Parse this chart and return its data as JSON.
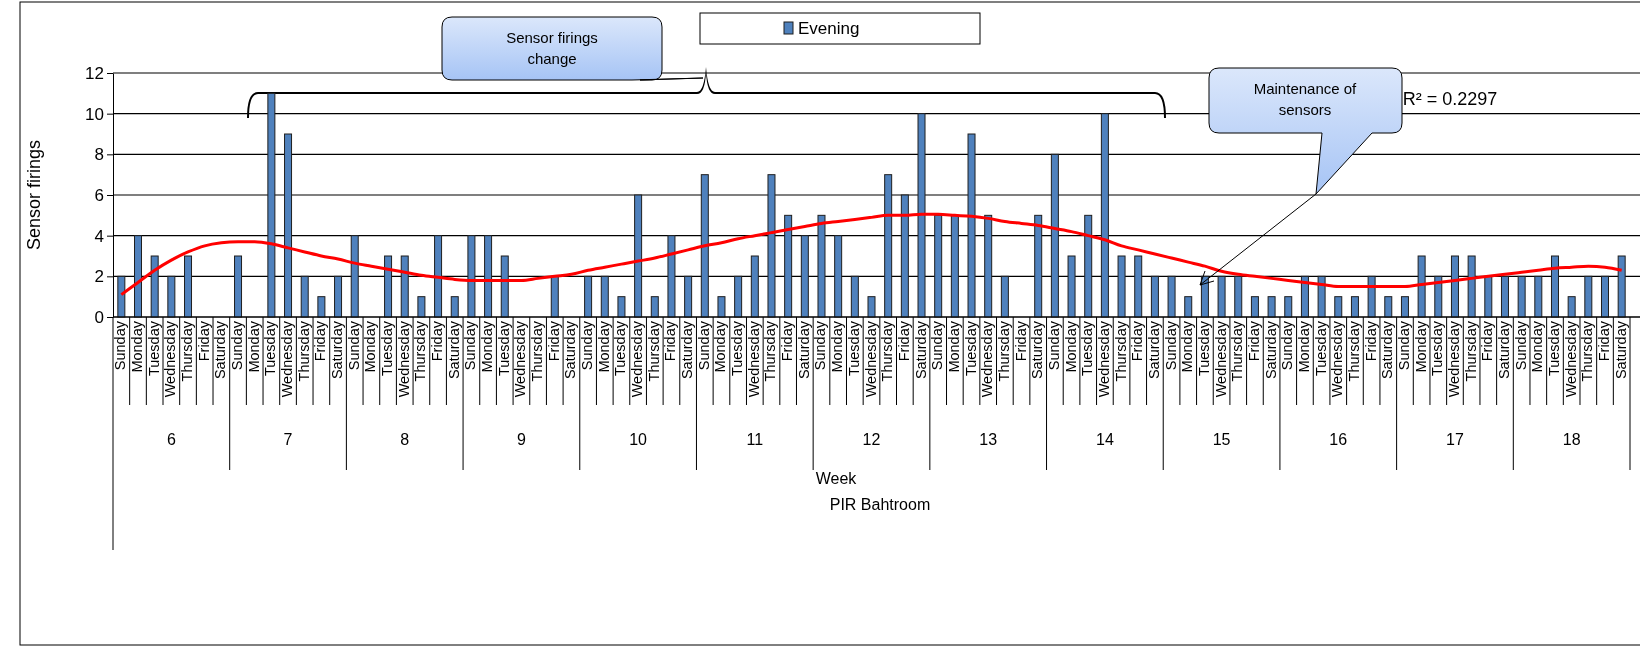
{
  "chart_data": {
    "type": "bar",
    "title": "PIR Bahtroom",
    "xlabel": "Week",
    "ylabel": "Sensor firings",
    "categories": [
      "Sunday",
      "Monday",
      "Tuesday",
      "Wednesday",
      "Thursday",
      "Friday",
      "Saturday",
      "Sunday",
      "Monday",
      "Tuesday",
      "Wednesday",
      "Thursday",
      "Friday",
      "Saturday",
      "Sunday",
      "Monday",
      "Tuesday",
      "Wednesday",
      "Thursday",
      "Friday",
      "Saturday",
      "Sunday",
      "Monday",
      "Tuesday",
      "Wednesday",
      "Thursday",
      "Friday",
      "Saturday",
      "Sunday",
      "Monday",
      "Tuesday",
      "Wednesday",
      "Thursday",
      "Friday",
      "Saturday",
      "Sunday",
      "Monday",
      "Tuesday",
      "Wednesday",
      "Thursday",
      "Friday",
      "Saturday",
      "Sunday",
      "Monday",
      "Tuesday",
      "Wednesday",
      "Thursday",
      "Friday",
      "Saturday",
      "Sunday",
      "Monday",
      "Tuesday",
      "Wednesday",
      "Thursday",
      "Friday",
      "Saturday",
      "Sunday",
      "Monday",
      "Tuesday",
      "Wednesday",
      "Thursday",
      "Friday",
      "Saturday",
      "Sunday",
      "Monday",
      "Tuesday",
      "Wednesday",
      "Thursday",
      "Friday",
      "Saturday",
      "Sunday",
      "Monday",
      "Tuesday",
      "Wednesday",
      "Thursday",
      "Friday",
      "Saturday",
      "Sunday",
      "Monday",
      "Tuesday",
      "Wednesday",
      "Thursday",
      "Friday",
      "Saturday",
      "Sunday",
      "Monday",
      "Tuesday",
      "Wednesday",
      "Thursday",
      "Friday",
      "Saturday"
    ],
    "series": [
      {
        "name": "Evening",
        "color": "#4f81bd",
        "values": [
          2,
          4,
          3,
          2,
          3,
          0,
          0,
          3,
          0,
          11,
          9,
          2,
          1,
          2,
          4,
          0,
          3,
          3,
          1,
          4,
          1,
          4,
          4,
          3,
          0,
          0,
          2,
          0,
          2,
          2,
          1,
          6,
          1,
          4,
          2,
          7,
          1,
          2,
          3,
          7,
          5,
          4,
          5,
          4,
          2,
          1,
          7,
          6,
          10,
          5,
          5,
          9,
          5,
          2,
          0,
          5,
          8,
          3,
          5,
          10,
          3,
          3,
          2,
          2,
          1,
          2,
          2,
          2,
          1,
          1,
          1,
          2,
          2,
          1,
          1,
          2,
          1,
          1,
          3,
          2,
          3,
          3,
          2,
          2,
          2,
          2,
          3,
          1,
          2,
          2,
          3
        ]
      },
      {
        "type": "line",
        "color": "#ff0000",
        "values": [
          1.1,
          1.7,
          2.3,
          2.8,
          3.2,
          3.5,
          3.65,
          3.7,
          3.7,
          3.6,
          3.4,
          3.2,
          3.0,
          2.85,
          2.65,
          2.5,
          2.35,
          2.2,
          2.05,
          1.95,
          1.85,
          1.8,
          1.8,
          1.8,
          1.8,
          1.9,
          2.0,
          2.1,
          2.3,
          2.45,
          2.6,
          2.75,
          2.9,
          3.1,
          3.3,
          3.5,
          3.65,
          3.85,
          4.0,
          4.15,
          4.3,
          4.45,
          4.6,
          4.7,
          4.8,
          4.9,
          5.0,
          5.0,
          5.05,
          5.05,
          5.0,
          4.95,
          4.85,
          4.7,
          4.6,
          4.5,
          4.35,
          4.2,
          4.0,
          3.8,
          3.5,
          3.3,
          3.1,
          2.9,
          2.7,
          2.5,
          2.25,
          2.1,
          2.0,
          1.9,
          1.8,
          1.7,
          1.6,
          1.5,
          1.5,
          1.5,
          1.5,
          1.5,
          1.6,
          1.7,
          1.8,
          1.9,
          2.0,
          2.1,
          2.2,
          2.3,
          2.4,
          2.45,
          2.5,
          2.45,
          2.3
        ]
      }
    ],
    "annotations": [
      "Sensor firings change",
      "Maintenance of sensors",
      "R² = 0.2297",
      "6",
      "7",
      "8",
      "9",
      "10",
      "11",
      "12",
      "13",
      "14",
      "15",
      "16",
      "17",
      "18"
    ],
    "ylim": [
      0,
      12
    ],
    "yticks": [
      0,
      2,
      4,
      6,
      8,
      10,
      12
    ],
    "grid": "y",
    "legend": "top",
    "marker": "none"
  }
}
